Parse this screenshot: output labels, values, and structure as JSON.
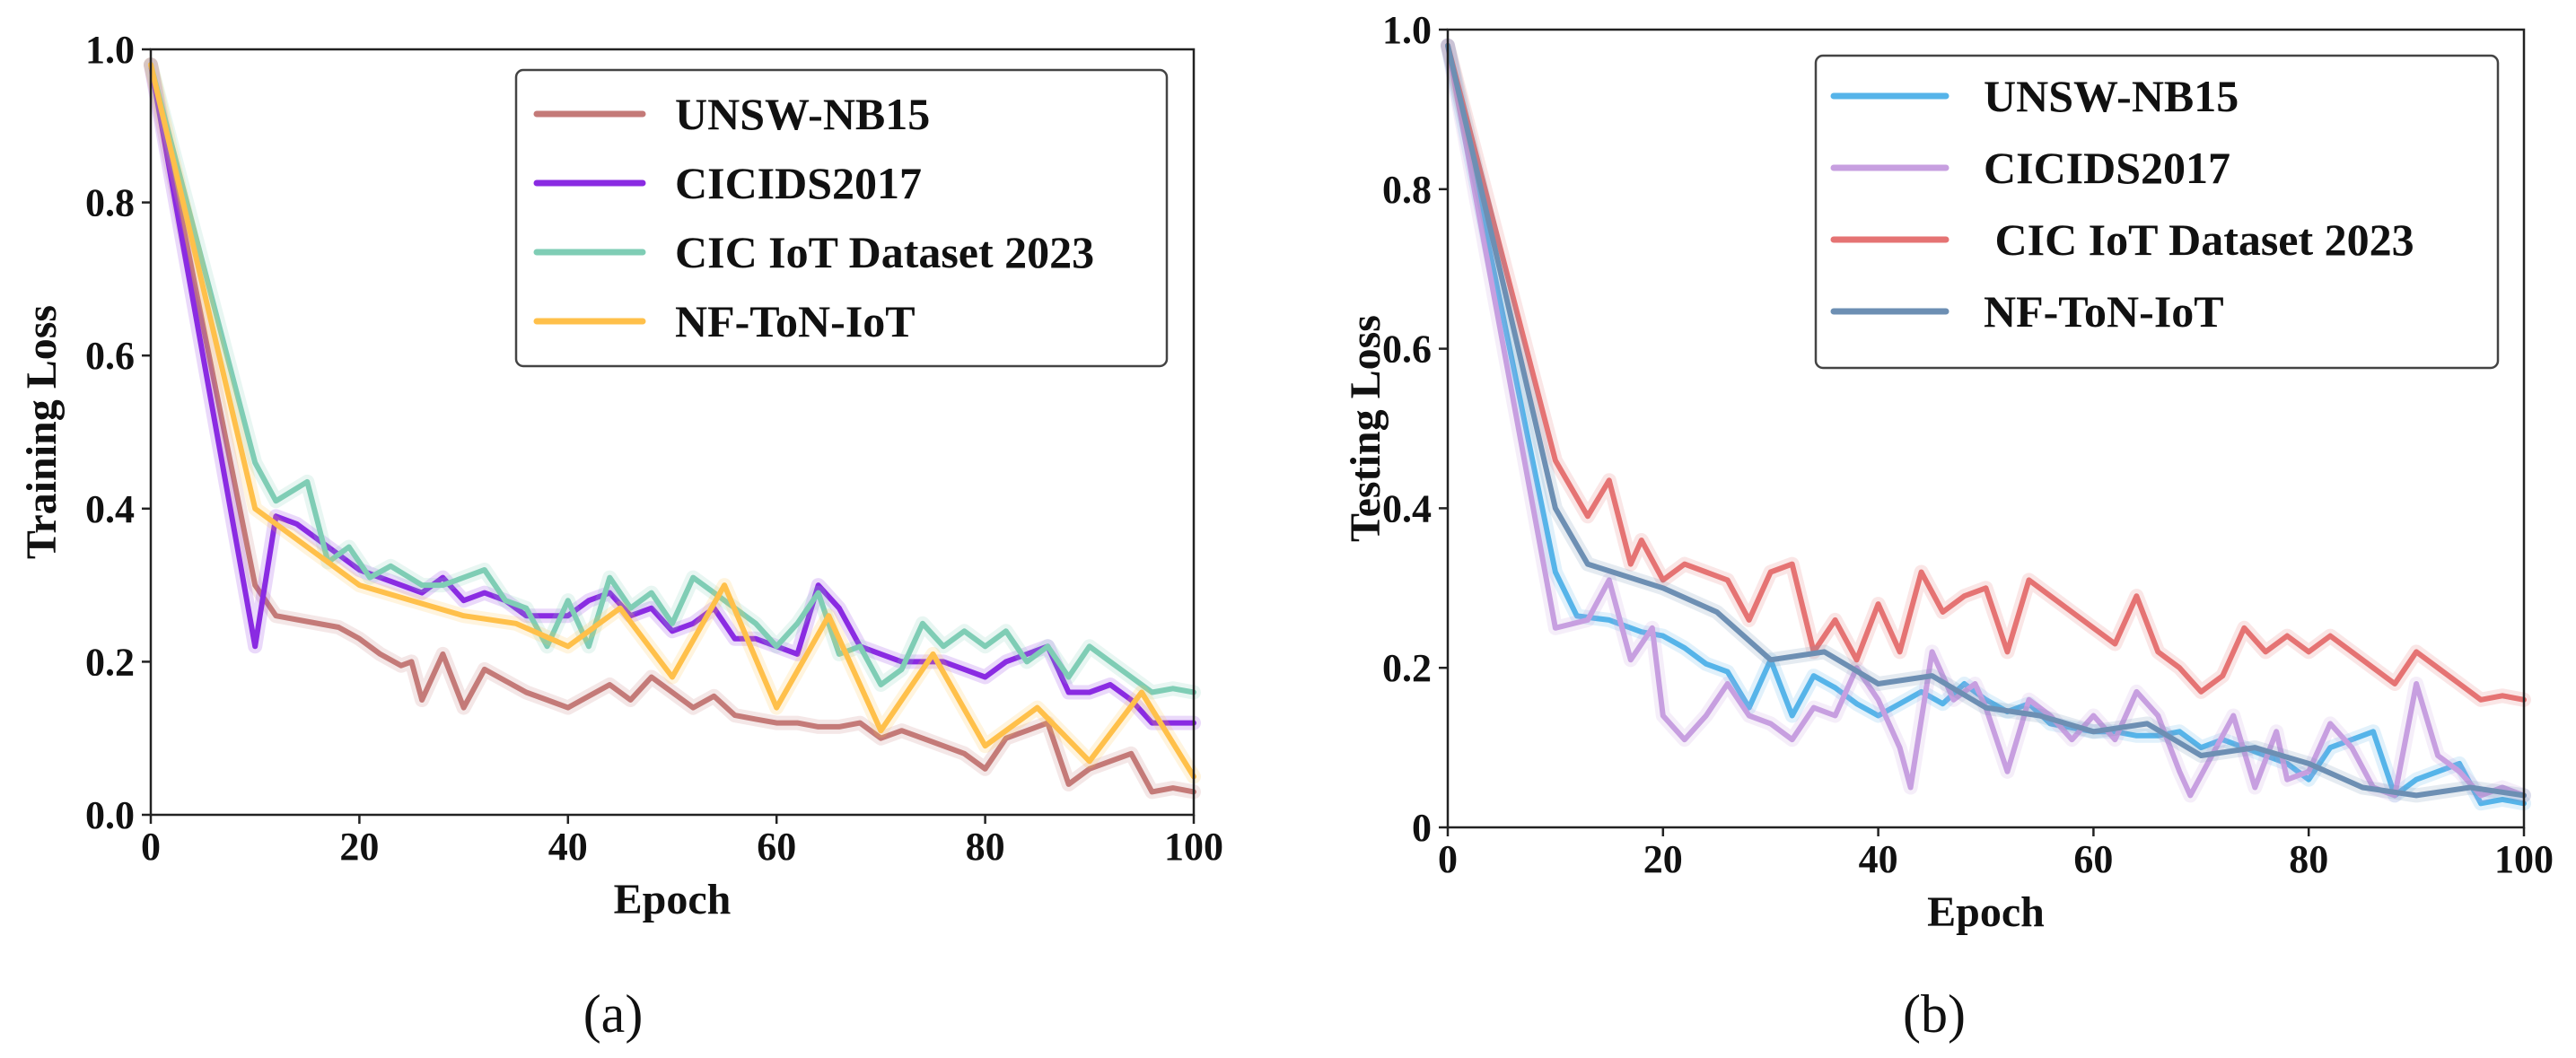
{
  "chart_data": [
    {
      "type": "line",
      "panel_label": "(a)",
      "xlabel": "Epoch",
      "ylabel": "Training Loss",
      "xlim": [
        0,
        100
      ],
      "ylim": [
        0,
        1.0
      ],
      "x_ticks": [
        "0",
        "20",
        "40",
        "60",
        "80",
        "100"
      ],
      "y_ticks": [
        "0.0",
        "0.2",
        "0.4",
        "0.6",
        "0.8",
        "1.0"
      ],
      "grid": false,
      "legend_position": "top-right",
      "series": [
        {
          "name": "UNSW-NB15",
          "color": "#c47a78",
          "x": [
            0,
            10,
            12,
            14,
            18,
            20,
            22,
            24,
            25,
            26,
            28,
            30,
            32,
            34,
            36,
            38,
            40,
            42,
            44,
            46,
            48,
            50,
            52,
            54,
            56,
            58,
            60,
            62,
            64,
            66,
            68,
            70,
            72,
            74,
            76,
            78,
            80,
            82,
            84,
            86,
            88,
            90,
            92,
            94,
            96,
            98,
            100
          ],
          "y": [
            0.98,
            0.3,
            0.26,
            0.255,
            0.245,
            0.23,
            0.21,
            0.195,
            0.2,
            0.15,
            0.21,
            0.14,
            0.19,
            0.175,
            0.16,
            0.15,
            0.14,
            0.155,
            0.17,
            0.15,
            0.18,
            0.16,
            0.14,
            0.155,
            0.13,
            0.125,
            0.12,
            0.12,
            0.115,
            0.115,
            0.12,
            0.1,
            0.11,
            0.1,
            0.09,
            0.08,
            0.06,
            0.1,
            0.11,
            0.12,
            0.04,
            0.06,
            0.07,
            0.08,
            0.03,
            0.035,
            0.03
          ]
        },
        {
          "name": "CICIDS2017",
          "color": "#8a2be2",
          "x": [
            0,
            10,
            12,
            14,
            18,
            20,
            22,
            24,
            26,
            28,
            30,
            32,
            34,
            36,
            38,
            40,
            42,
            44,
            46,
            48,
            50,
            52,
            54,
            56,
            58,
            60,
            62,
            64,
            66,
            68,
            70,
            72,
            74,
            76,
            78,
            80,
            82,
            84,
            86,
            88,
            90,
            92,
            94,
            96,
            98,
            100
          ],
          "y": [
            0.98,
            0.22,
            0.39,
            0.38,
            0.34,
            0.32,
            0.31,
            0.3,
            0.29,
            0.31,
            0.28,
            0.29,
            0.28,
            0.26,
            0.26,
            0.26,
            0.28,
            0.29,
            0.26,
            0.27,
            0.24,
            0.25,
            0.27,
            0.23,
            0.23,
            0.22,
            0.21,
            0.3,
            0.27,
            0.22,
            0.21,
            0.2,
            0.2,
            0.2,
            0.19,
            0.18,
            0.2,
            0.21,
            0.22,
            0.16,
            0.16,
            0.17,
            0.15,
            0.12,
            0.12,
            0.12
          ]
        },
        {
          "name": "CIC IoT Dataset 2023",
          "color": "#7fcdb5",
          "x": [
            0,
            10,
            12,
            15,
            17,
            19,
            21,
            23,
            26,
            28,
            30,
            32,
            34,
            36,
            38,
            40,
            42,
            44,
            46,
            48,
            50,
            52,
            54,
            56,
            58,
            60,
            62,
            64,
            66,
            68,
            70,
            72,
            74,
            76,
            78,
            80,
            82,
            84,
            86,
            88,
            90,
            92,
            94,
            96,
            98,
            100
          ],
          "y": [
            0.98,
            0.46,
            0.41,
            0.435,
            0.33,
            0.35,
            0.31,
            0.325,
            0.3,
            0.3,
            0.31,
            0.32,
            0.28,
            0.27,
            0.22,
            0.28,
            0.22,
            0.31,
            0.27,
            0.29,
            0.25,
            0.31,
            0.29,
            0.27,
            0.25,
            0.22,
            0.25,
            0.29,
            0.21,
            0.22,
            0.17,
            0.19,
            0.25,
            0.22,
            0.24,
            0.22,
            0.24,
            0.2,
            0.22,
            0.18,
            0.22,
            0.2,
            0.18,
            0.16,
            0.165,
            0.16
          ]
        },
        {
          "name": "NF-ToN-IoT",
          "color": "#ffc04a",
          "x": [
            0,
            10,
            15,
            20,
            25,
            30,
            35,
            40,
            45,
            50,
            55,
            60,
            65,
            70,
            75,
            80,
            85,
            90,
            95,
            100
          ],
          "y": [
            0.98,
            0.4,
            0.35,
            0.3,
            0.28,
            0.26,
            0.25,
            0.22,
            0.27,
            0.18,
            0.3,
            0.14,
            0.26,
            0.11,
            0.21,
            0.09,
            0.14,
            0.07,
            0.16,
            0.05
          ]
        }
      ]
    },
    {
      "type": "line",
      "panel_label": "(b)",
      "xlabel": "Epoch",
      "ylabel": "Testing Loss",
      "xlim": [
        0,
        100
      ],
      "ylim": [
        0,
        1.0
      ],
      "x_ticks": [
        "0",
        "20",
        "40",
        "60",
        "80",
        "100"
      ],
      "y_ticks": [
        "0",
        "0.2",
        "0.4",
        "0.6",
        "0.8",
        "1.0"
      ],
      "grid": false,
      "legend_position": "top-right",
      "series": [
        {
          "name": "UNSW-NB15",
          "color": "#56b4e9",
          "x": [
            0,
            10,
            12,
            15,
            18,
            20,
            22,
            24,
            26,
            28,
            30,
            32,
            34,
            36,
            38,
            40,
            42,
            44,
            46,
            48,
            50,
            52,
            54,
            56,
            58,
            60,
            62,
            64,
            66,
            68,
            70,
            72,
            74,
            76,
            78,
            80,
            82,
            84,
            86,
            88,
            90,
            92,
            94,
            96,
            98,
            100
          ],
          "y": [
            0.98,
            0.32,
            0.265,
            0.26,
            0.245,
            0.24,
            0.225,
            0.205,
            0.195,
            0.15,
            0.21,
            0.14,
            0.19,
            0.175,
            0.155,
            0.14,
            0.155,
            0.17,
            0.155,
            0.18,
            0.16,
            0.145,
            0.155,
            0.13,
            0.125,
            0.12,
            0.12,
            0.115,
            0.115,
            0.12,
            0.1,
            0.11,
            0.1,
            0.09,
            0.08,
            0.06,
            0.1,
            0.11,
            0.12,
            0.04,
            0.06,
            0.07,
            0.08,
            0.03,
            0.035,
            0.03
          ]
        },
        {
          "name": "CICIDS2017",
          "color": "#c79fe0",
          "x": [
            0,
            10,
            13,
            15,
            17,
            19,
            20,
            22,
            24,
            26,
            28,
            30,
            32,
            34,
            36,
            38,
            40,
            42,
            43,
            45,
            47,
            49,
            50,
            52,
            54,
            56,
            58,
            60,
            62,
            64,
            66,
            68,
            69,
            71,
            73,
            75,
            77,
            78,
            80,
            82,
            84,
            86,
            88,
            90,
            92,
            94,
            96,
            98,
            100
          ],
          "y": [
            0.98,
            0.25,
            0.26,
            0.31,
            0.21,
            0.25,
            0.14,
            0.11,
            0.14,
            0.18,
            0.14,
            0.13,
            0.11,
            0.15,
            0.14,
            0.2,
            0.16,
            0.1,
            0.05,
            0.22,
            0.16,
            0.18,
            0.15,
            0.07,
            0.16,
            0.14,
            0.11,
            0.14,
            0.11,
            0.17,
            0.14,
            0.07,
            0.04,
            0.09,
            0.14,
            0.05,
            0.12,
            0.06,
            0.07,
            0.13,
            0.1,
            0.05,
            0.04,
            0.18,
            0.09,
            0.07,
            0.04,
            0.05,
            0.04
          ]
        },
        {
          "name": " CIC IoT Dataset 2023",
          "color": "#e57373",
          "x": [
            0,
            10,
            13,
            15,
            17,
            18,
            20,
            22,
            24,
            26,
            28,
            30,
            32,
            34,
            36,
            38,
            40,
            42,
            44,
            46,
            48,
            50,
            52,
            54,
            56,
            58,
            60,
            62,
            64,
            66,
            68,
            70,
            72,
            74,
            76,
            78,
            80,
            82,
            84,
            86,
            88,
            90,
            92,
            94,
            96,
            98,
            100
          ],
          "y": [
            0.98,
            0.46,
            0.39,
            0.435,
            0.33,
            0.36,
            0.31,
            0.33,
            0.32,
            0.31,
            0.26,
            0.32,
            0.33,
            0.22,
            0.26,
            0.21,
            0.28,
            0.22,
            0.32,
            0.27,
            0.29,
            0.3,
            0.22,
            0.31,
            0.29,
            0.27,
            0.25,
            0.23,
            0.29,
            0.22,
            0.2,
            0.17,
            0.19,
            0.25,
            0.22,
            0.24,
            0.22,
            0.24,
            0.22,
            0.2,
            0.18,
            0.22,
            0.2,
            0.18,
            0.16,
            0.165,
            0.16
          ]
        },
        {
          "name": "NF-ToN-IoT",
          "color": "#6d8fb3",
          "x": [
            0,
            10,
            13,
            20,
            25,
            30,
            35,
            40,
            45,
            50,
            55,
            60,
            65,
            70,
            75,
            80,
            85,
            90,
            95,
            100
          ],
          "y": [
            0.98,
            0.4,
            0.33,
            0.3,
            0.27,
            0.21,
            0.22,
            0.18,
            0.19,
            0.15,
            0.14,
            0.12,
            0.13,
            0.09,
            0.1,
            0.08,
            0.05,
            0.04,
            0.05,
            0.04
          ]
        }
      ]
    }
  ]
}
